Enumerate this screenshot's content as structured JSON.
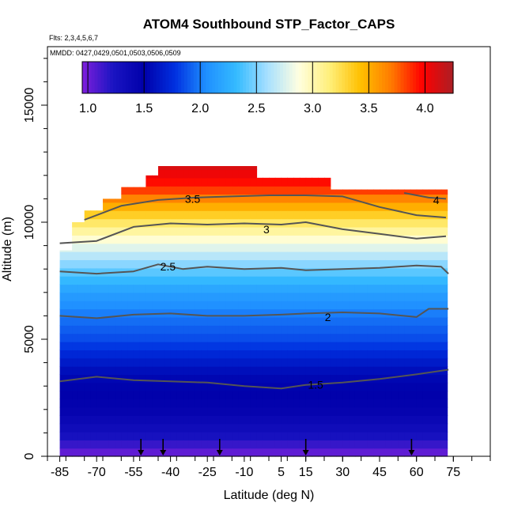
{
  "chart_data": {
    "type": "heatmap",
    "title": "ATOM4 Southbound STP_Factor_CAPS",
    "flights_note": "Flts: 2,3,4,5,6,7",
    "dates_note": "MMDD: 0427,0429,0501,0503,0506,0509",
    "xlabel": "Latitude (deg N)",
    "ylabel": "Altitude (m)",
    "xlim": [
      -90,
      90
    ],
    "ylim": [
      0,
      17500
    ],
    "x_ticks": [
      -85,
      -70,
      -55,
      -40,
      -25,
      -10,
      5,
      15,
      30,
      45,
      60,
      75
    ],
    "x_tick_labels": [
      "-85",
      "-70",
      "-55",
      "-40",
      "-25",
      "-10",
      "5",
      "15",
      "30",
      "45",
      "60",
      "75"
    ],
    "y_ticks": [
      0,
      5000,
      10000,
      15000
    ],
    "y_tick_labels": [
      "0",
      "5000",
      "10000",
      "15000"
    ],
    "colorbar": {
      "range": [
        0.95,
        4.25
      ],
      "ticks": [
        1.0,
        1.5,
        2.0,
        2.5,
        3.0,
        3.5,
        4.0
      ],
      "tick_labels": [
        "1.0",
        "1.5",
        "2.0",
        "2.5",
        "3.0",
        "3.5",
        "4.0"
      ],
      "colors": [
        "#7f1fdc",
        "#1a14c2",
        "#0000aa",
        "#0030e0",
        "#1f8fff",
        "#35bbff",
        "#a8e0ff",
        "#ffffe0",
        "#ffef7a",
        "#ffc000",
        "#ff7a00",
        "#ff0000",
        "#ab1f24"
      ]
    },
    "contours": [
      {
        "label": "1.5",
        "points": [
          [
            -85,
            3200
          ],
          [
            -70,
            3400
          ],
          [
            -55,
            3250
          ],
          [
            -40,
            3200
          ],
          [
            -25,
            3150
          ],
          [
            -10,
            3000
          ],
          [
            5,
            2900
          ],
          [
            15,
            3050
          ],
          [
            30,
            3150
          ],
          [
            45,
            3300
          ],
          [
            60,
            3500
          ],
          [
            73,
            3700
          ]
        ]
      },
      {
        "label": "2",
        "points": [
          [
            -85,
            6000
          ],
          [
            -70,
            5900
          ],
          [
            -55,
            6050
          ],
          [
            -40,
            6100
          ],
          [
            -25,
            6000
          ],
          [
            -10,
            6000
          ],
          [
            5,
            6050
          ],
          [
            15,
            6100
          ],
          [
            30,
            6150
          ],
          [
            45,
            6100
          ],
          [
            60,
            5950
          ],
          [
            65,
            6300
          ],
          [
            73,
            6300
          ]
        ]
      },
      {
        "label": "2.5",
        "points": [
          [
            -85,
            7900
          ],
          [
            -70,
            7800
          ],
          [
            -55,
            7900
          ],
          [
            -45,
            8200
          ],
          [
            -35,
            8000
          ],
          [
            -25,
            8100
          ],
          [
            -10,
            8000
          ],
          [
            5,
            8050
          ],
          [
            15,
            7950
          ],
          [
            30,
            8000
          ],
          [
            45,
            8050
          ],
          [
            60,
            8150
          ],
          [
            70,
            8100
          ],
          [
            73,
            7800
          ]
        ]
      },
      {
        "label": "3",
        "points": [
          [
            -85,
            9100
          ],
          [
            -70,
            9200
          ],
          [
            -55,
            9800
          ],
          [
            -40,
            9950
          ],
          [
            -25,
            9900
          ],
          [
            -10,
            9950
          ],
          [
            5,
            9900
          ],
          [
            15,
            10000
          ],
          [
            30,
            9700
          ],
          [
            45,
            9500
          ],
          [
            60,
            9300
          ],
          [
            72,
            9400
          ]
        ]
      },
      {
        "label": "3.5",
        "points": [
          [
            -75,
            10100
          ],
          [
            -60,
            10700
          ],
          [
            -45,
            10950
          ],
          [
            -30,
            11050
          ],
          [
            -15,
            11100
          ],
          [
            0,
            11150
          ],
          [
            15,
            11150
          ],
          [
            30,
            11100
          ],
          [
            45,
            10650
          ],
          [
            60,
            10300
          ],
          [
            72,
            10200
          ]
        ]
      },
      {
        "label": "4",
        "points": [
          [
            55,
            11250
          ],
          [
            65,
            11050
          ],
          [
            72,
            11000
          ]
        ]
      }
    ],
    "contour_label_positions": [
      {
        "label": "1.5",
        "x": 19,
        "y": 3050
      },
      {
        "label": "2",
        "x": 24,
        "y": 5950
      },
      {
        "label": "2.5",
        "x": -41,
        "y": 8100
      },
      {
        "label": "3",
        "x": -1,
        "y": 9700
      },
      {
        "label": "3.5",
        "x": -31,
        "y": 11000
      },
      {
        "label": "4",
        "x": 68,
        "y": 10950
      }
    ],
    "flight_markers_lat": [
      -52,
      -43,
      -20,
      15,
      58
    ],
    "data_extent": [
      {
        "lat": -85,
        "top": 8800
      },
      {
        "lat": -80,
        "top": 10000
      },
      {
        "lat": -75,
        "top": 10500
      },
      {
        "lat": -68,
        "top": 11000
      },
      {
        "lat": -60,
        "top": 11500
      },
      {
        "lat": -52,
        "top": 12000
      },
      {
        "lat": -45,
        "top": 12400
      },
      {
        "lat": -10,
        "top": 12400
      },
      {
        "lat": -5,
        "top": 11900
      },
      {
        "lat": 20,
        "top": 11900
      },
      {
        "lat": 25,
        "top": 11400
      },
      {
        "lat": 72,
        "top": 11400
      }
    ],
    "field_levels": [
      {
        "altitude": 0,
        "value": 0.98
      },
      {
        "altitude": 1000,
        "value": 1.3
      },
      {
        "altitude": 2000,
        "value": 1.45
      },
      {
        "altitude": 3500,
        "value": 1.55
      },
      {
        "altitude": 5000,
        "value": 1.85
      },
      {
        "altitude": 6000,
        "value": 1.98
      },
      {
        "altitude": 7000,
        "value": 2.15
      },
      {
        "altitude": 8000,
        "value": 2.45
      },
      {
        "altitude": 9000,
        "value": 2.8
      },
      {
        "altitude": 10000,
        "value": 3.2
      },
      {
        "altitude": 10800,
        "value": 3.55
      },
      {
        "altitude": 11500,
        "value": 3.9
      },
      {
        "altitude": 12400,
        "value": 4.1
      }
    ]
  }
}
